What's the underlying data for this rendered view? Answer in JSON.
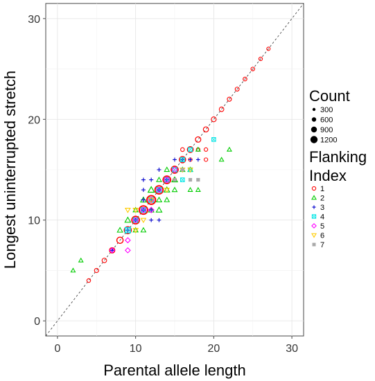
{
  "chart_data": {
    "type": "scatter",
    "xlabel": "Parental allele length",
    "ylabel": "Longest uninterrupted stretch",
    "xlim": [
      -1.5,
      31.5
    ],
    "ylim": [
      -1.5,
      31.5
    ],
    "x_ticks": [
      0,
      10,
      20,
      30
    ],
    "y_ticks": [
      0,
      10,
      20,
      30
    ],
    "grid": true,
    "reference_line": "identity y = x (dashed)",
    "size_legend": {
      "title": "Count",
      "labels": [
        "300",
        "600",
        "900",
        "1200"
      ]
    },
    "color_legend": {
      "title_lines": [
        "Flanking",
        "Index"
      ],
      "entries": [
        {
          "label": "1",
          "color": "#ff0000",
          "shape": "circle"
        },
        {
          "label": "2",
          "color": "#00cc00",
          "shape": "triangle"
        },
        {
          "label": "3",
          "color": "#0000cc",
          "shape": "plus"
        },
        {
          "label": "4",
          "color": "#00e5e5",
          "shape": "square-cross"
        },
        {
          "label": "5",
          "color": "#ff00ff",
          "shape": "diamond"
        },
        {
          "label": "6",
          "color": "#ffcc00",
          "shape": "triangle-down"
        },
        {
          "label": "7",
          "color": "#aaaaaa",
          "shape": "square"
        }
      ]
    },
    "series": [
      {
        "name": "1",
        "points": [
          [
            4,
            4,
            50
          ],
          [
            5,
            5,
            100
          ],
          [
            6,
            6,
            150
          ],
          [
            7,
            7,
            300
          ],
          [
            8,
            8,
            500
          ],
          [
            9,
            9,
            700
          ],
          [
            10,
            10,
            900
          ],
          [
            11,
            11,
            1200
          ],
          [
            12,
            12,
            1300
          ],
          [
            13,
            13,
            1100
          ],
          [
            14,
            14,
            900
          ],
          [
            15,
            15,
            700
          ],
          [
            16,
            16,
            500
          ],
          [
            17,
            17,
            400
          ],
          [
            18,
            18,
            300
          ],
          [
            19,
            19,
            250
          ],
          [
            20,
            20,
            200
          ],
          [
            21,
            21,
            150
          ],
          [
            22,
            22,
            100
          ],
          [
            23,
            23,
            80
          ],
          [
            24,
            24,
            60
          ],
          [
            25,
            25,
            50
          ],
          [
            26,
            26,
            40
          ],
          [
            27,
            27,
            30
          ],
          [
            16,
            17,
            60
          ],
          [
            18,
            17,
            40
          ],
          [
            19,
            16,
            40
          ],
          [
            19,
            17,
            40
          ],
          [
            17,
            16,
            40
          ],
          [
            15,
            14,
            40
          ]
        ]
      },
      {
        "name": "2",
        "points": [
          [
            2,
            5,
            50
          ],
          [
            3,
            6,
            50
          ],
          [
            8,
            9,
            150
          ],
          [
            9,
            10,
            200
          ],
          [
            10,
            9,
            100
          ],
          [
            11,
            9,
            100
          ],
          [
            12,
            13,
            300
          ],
          [
            13,
            11,
            200
          ],
          [
            13,
            12,
            150
          ],
          [
            14,
            13,
            200
          ],
          [
            14,
            15,
            100
          ],
          [
            15,
            14,
            200
          ],
          [
            15,
            13,
            100
          ],
          [
            16,
            15,
            100
          ],
          [
            14,
            12,
            100
          ],
          [
            17,
            13,
            50
          ],
          [
            17,
            15,
            100
          ],
          [
            18,
            17,
            50
          ],
          [
            18,
            13,
            50
          ],
          [
            21,
            16,
            50
          ],
          [
            22,
            17,
            50
          ],
          [
            10,
            11,
            100
          ],
          [
            11,
            12,
            200
          ],
          [
            12,
            11,
            150
          ],
          [
            13,
            14,
            100
          ]
        ]
      },
      {
        "name": "3",
        "points": [
          [
            7,
            7,
            200
          ],
          [
            9,
            9,
            150
          ],
          [
            10,
            10,
            200
          ],
          [
            11,
            11,
            300
          ],
          [
            11,
            12,
            200
          ],
          [
            11,
            13,
            100
          ],
          [
            12,
            12,
            400
          ],
          [
            12,
            11,
            100
          ],
          [
            12,
            10,
            80
          ],
          [
            12,
            14,
            100
          ],
          [
            13,
            13,
            300
          ],
          [
            13,
            15,
            100
          ],
          [
            13,
            10,
            80
          ],
          [
            14,
            14,
            200
          ],
          [
            15,
            16,
            80
          ],
          [
            16,
            16,
            100
          ],
          [
            17,
            16,
            80
          ],
          [
            18,
            16,
            80
          ],
          [
            11,
            14,
            100
          ]
        ]
      },
      {
        "name": "4",
        "points": [
          [
            9,
            9,
            300
          ],
          [
            10,
            10,
            150
          ],
          [
            11,
            11,
            200
          ],
          [
            12,
            12,
            200
          ],
          [
            13,
            13,
            200
          ],
          [
            14,
            14,
            150
          ],
          [
            15,
            15,
            150
          ],
          [
            16,
            16,
            100
          ],
          [
            17,
            17,
            80
          ],
          [
            20,
            18,
            60
          ],
          [
            16,
            14,
            60
          ],
          [
            17,
            15,
            60
          ]
        ]
      },
      {
        "name": "5",
        "points": [
          [
            7,
            7,
            100
          ],
          [
            9,
            7,
            100
          ],
          [
            9,
            8,
            100
          ],
          [
            10,
            10,
            100
          ],
          [
            11,
            11,
            150
          ],
          [
            12,
            11,
            150
          ],
          [
            12,
            12,
            150
          ],
          [
            13,
            13,
            100
          ],
          [
            14,
            14,
            200
          ],
          [
            15,
            15,
            100
          ]
        ]
      },
      {
        "name": "6",
        "points": [
          [
            9,
            11,
            100
          ],
          [
            10,
            9,
            100
          ],
          [
            10,
            11,
            100
          ],
          [
            11,
            10,
            80
          ],
          [
            12,
            12,
            80
          ],
          [
            14,
            13,
            80
          ],
          [
            16,
            15,
            80
          ],
          [
            17,
            15,
            80
          ]
        ]
      },
      {
        "name": "7",
        "points": [
          [
            15,
            14,
            60
          ],
          [
            16,
            15,
            60
          ],
          [
            17,
            14,
            60
          ],
          [
            18,
            14,
            60
          ]
        ]
      }
    ]
  }
}
